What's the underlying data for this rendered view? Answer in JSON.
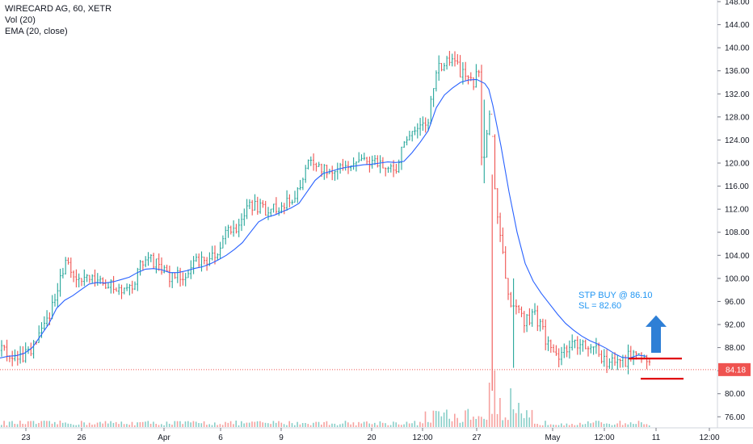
{
  "legend": {
    "title": "WIRECARD AG, 60, XETR",
    "vol": "Vol (20)",
    "ema": "EMA (20, close)"
  },
  "annotation": {
    "line1": "STP BUY @ 86.10",
    "line2": "SL = 82.60"
  },
  "colors": {
    "up": "#26a69a",
    "down": "#ef5350",
    "ema": "#2962ff",
    "stopline": "#e0000b",
    "arrow": "#2e7fd6",
    "price_tag": "#ef5350"
  },
  "chart_data": {
    "type": "candlestick",
    "title": "WIRECARD AG, 60, XETR",
    "last_price": "84.18",
    "y_ticks": [
      "148.00",
      "144.00",
      "140.00",
      "136.00",
      "132.00",
      "128.00",
      "124.00",
      "120.00",
      "116.00",
      "112.00",
      "108.00",
      "104.00",
      "100.00",
      "96.00",
      "92.00",
      "88.00",
      "84.00",
      "80.00",
      "76.00"
    ],
    "ylim": [
      74.5,
      148
    ],
    "x_ticks": [
      "23",
      "26",
      "Apr",
      "6",
      "9",
      "20",
      "12:00",
      "27",
      "May",
      "12:00",
      "11",
      "12:00"
    ],
    "levels": {
      "stop_buy": 86.1,
      "stop_loss": 82.6
    },
    "ema_path": [
      [
        0,
        86.2
      ],
      [
        10,
        86.5
      ],
      [
        20,
        86.6
      ],
      [
        30,
        87.0
      ],
      [
        40,
        88.0
      ],
      [
        50,
        90.0
      ],
      [
        60,
        92.0
      ],
      [
        70,
        94.8
      ],
      [
        80,
        96.2
      ],
      [
        90,
        97.0
      ],
      [
        100,
        98.0
      ],
      [
        110,
        99.0
      ],
      [
        120,
        99.3
      ],
      [
        130,
        99.2
      ],
      [
        140,
        99.4
      ],
      [
        150,
        99.8
      ],
      [
        160,
        100.2
      ],
      [
        170,
        101.0
      ],
      [
        180,
        101.6
      ],
      [
        190,
        101.7
      ],
      [
        200,
        101.5
      ],
      [
        210,
        101.0
      ],
      [
        220,
        101.0
      ],
      [
        230,
        101.3
      ],
      [
        240,
        101.7
      ],
      [
        250,
        102.0
      ],
      [
        260,
        102.5
      ],
      [
        270,
        103.2
      ],
      [
        280,
        104.0
      ],
      [
        290,
        105.0
      ],
      [
        300,
        106.2
      ],
      [
        310,
        108.0
      ],
      [
        320,
        109.8
      ],
      [
        330,
        110.6
      ],
      [
        340,
        111.0
      ],
      [
        350,
        111.6
      ],
      [
        360,
        112.2
      ],
      [
        370,
        113.0
      ],
      [
        380,
        115.0
      ],
      [
        390,
        117.0
      ],
      [
        400,
        118.2
      ],
      [
        410,
        118.6
      ],
      [
        420,
        119.0
      ],
      [
        430,
        119.3
      ],
      [
        440,
        119.5
      ],
      [
        450,
        119.7
      ],
      [
        460,
        119.8
      ],
      [
        470,
        120.0
      ],
      [
        480,
        120.2
      ],
      [
        490,
        120.1
      ],
      [
        500,
        120.3
      ],
      [
        510,
        121.8
      ],
      [
        520,
        123.6
      ],
      [
        530,
        125.6
      ],
      [
        540,
        129.6
      ],
      [
        550,
        131.8
      ],
      [
        560,
        133.0
      ],
      [
        570,
        134.0
      ],
      [
        580,
        134.4
      ],
      [
        590,
        134.5
      ],
      [
        600,
        133.8
      ],
      [
        605,
        132.8
      ],
      [
        610,
        130.0
      ],
      [
        620,
        123.0
      ],
      [
        630,
        115.0
      ],
      [
        640,
        108.0
      ],
      [
        650,
        102.6
      ],
      [
        660,
        99.5
      ],
      [
        670,
        97.4
      ],
      [
        680,
        95.6
      ],
      [
        690,
        93.8
      ],
      [
        700,
        92.2
      ],
      [
        710,
        91.0
      ],
      [
        720,
        90.0
      ],
      [
        730,
        89.2
      ],
      [
        740,
        88.6
      ],
      [
        750,
        87.9
      ],
      [
        760,
        87.0
      ],
      [
        770,
        86.3
      ],
      [
        780,
        86.2
      ],
      [
        790,
        86.7
      ],
      [
        800,
        86.5
      ]
    ],
    "series": [
      {
        "name": "Vol (20)",
        "type": "volume"
      },
      {
        "name": "EMA (20, close)",
        "type": "line"
      }
    ]
  }
}
